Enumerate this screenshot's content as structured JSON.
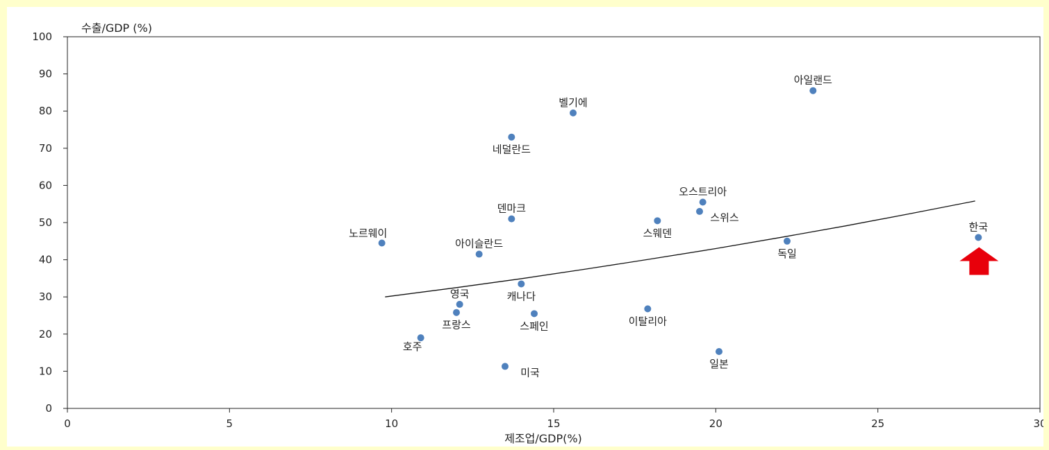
{
  "chart_data": {
    "type": "scatter",
    "title": "",
    "xlabel": "제조업/GDP(%)",
    "ylabel": "수출/GDP (%)",
    "xlim": [
      0,
      30
    ],
    "ylim": [
      0,
      100
    ],
    "x_ticks": [
      0,
      5,
      10,
      15,
      20,
      25,
      30
    ],
    "y_ticks": [
      0,
      10,
      20,
      30,
      40,
      50,
      60,
      70,
      80,
      90,
      100
    ],
    "grid": false,
    "legend": "none",
    "point_color": "#4f81bd",
    "points": [
      {
        "label": "아일랜드",
        "x": 23.0,
        "y": 85.5,
        "label_pos": "above"
      },
      {
        "label": "벨기에",
        "x": 15.6,
        "y": 79.5,
        "label_pos": "above"
      },
      {
        "label": "네덜란드",
        "x": 13.7,
        "y": 73.0,
        "label_pos": "below"
      },
      {
        "label": "오스트리아",
        "x": 19.6,
        "y": 55.5,
        "label_pos": "above"
      },
      {
        "label": "스위스",
        "x": 19.5,
        "y": 53.0,
        "label_pos": "below-right"
      },
      {
        "label": "덴마크",
        "x": 13.7,
        "y": 51.0,
        "label_pos": "above"
      },
      {
        "label": "스웨덴",
        "x": 18.2,
        "y": 50.5,
        "label_pos": "below"
      },
      {
        "label": "노르웨이",
        "x": 9.7,
        "y": 44.5,
        "label_pos": "above-left"
      },
      {
        "label": "아이슬란드",
        "x": 12.7,
        "y": 41.5,
        "label_pos": "above"
      },
      {
        "label": "독일",
        "x": 22.2,
        "y": 45.0,
        "label_pos": "below"
      },
      {
        "label": "한국",
        "x": 28.1,
        "y": 46.0,
        "label_pos": "above"
      },
      {
        "label": "캐나다",
        "x": 14.0,
        "y": 33.5,
        "label_pos": "below"
      },
      {
        "label": "영국",
        "x": 12.1,
        "y": 28.0,
        "label_pos": "above"
      },
      {
        "label": "프랑스",
        "x": 12.0,
        "y": 25.8,
        "label_pos": "below"
      },
      {
        "label": "스페인",
        "x": 14.4,
        "y": 25.5,
        "label_pos": "below"
      },
      {
        "label": "이탈리아",
        "x": 17.9,
        "y": 26.8,
        "label_pos": "below"
      },
      {
        "label": "호주",
        "x": 10.9,
        "y": 19.0,
        "label_pos": "below-left"
      },
      {
        "label": "일본",
        "x": 20.1,
        "y": 15.3,
        "label_pos": "below"
      },
      {
        "label": "미국",
        "x": 13.5,
        "y": 11.3,
        "label_pos": "below-right"
      }
    ],
    "trendline": {
      "x": [
        9.8,
        12.0,
        14.0,
        16.0,
        18.0,
        20.0,
        22.0,
        24.0,
        26.0,
        28.0
      ],
      "y": [
        30.0,
        32.5,
        34.9,
        37.5,
        40.2,
        43.0,
        46.0,
        49.1,
        52.4,
        55.8
      ]
    },
    "highlight": {
      "label": "한국",
      "marker": "red-up-arrow",
      "color": "#e8000b"
    }
  }
}
